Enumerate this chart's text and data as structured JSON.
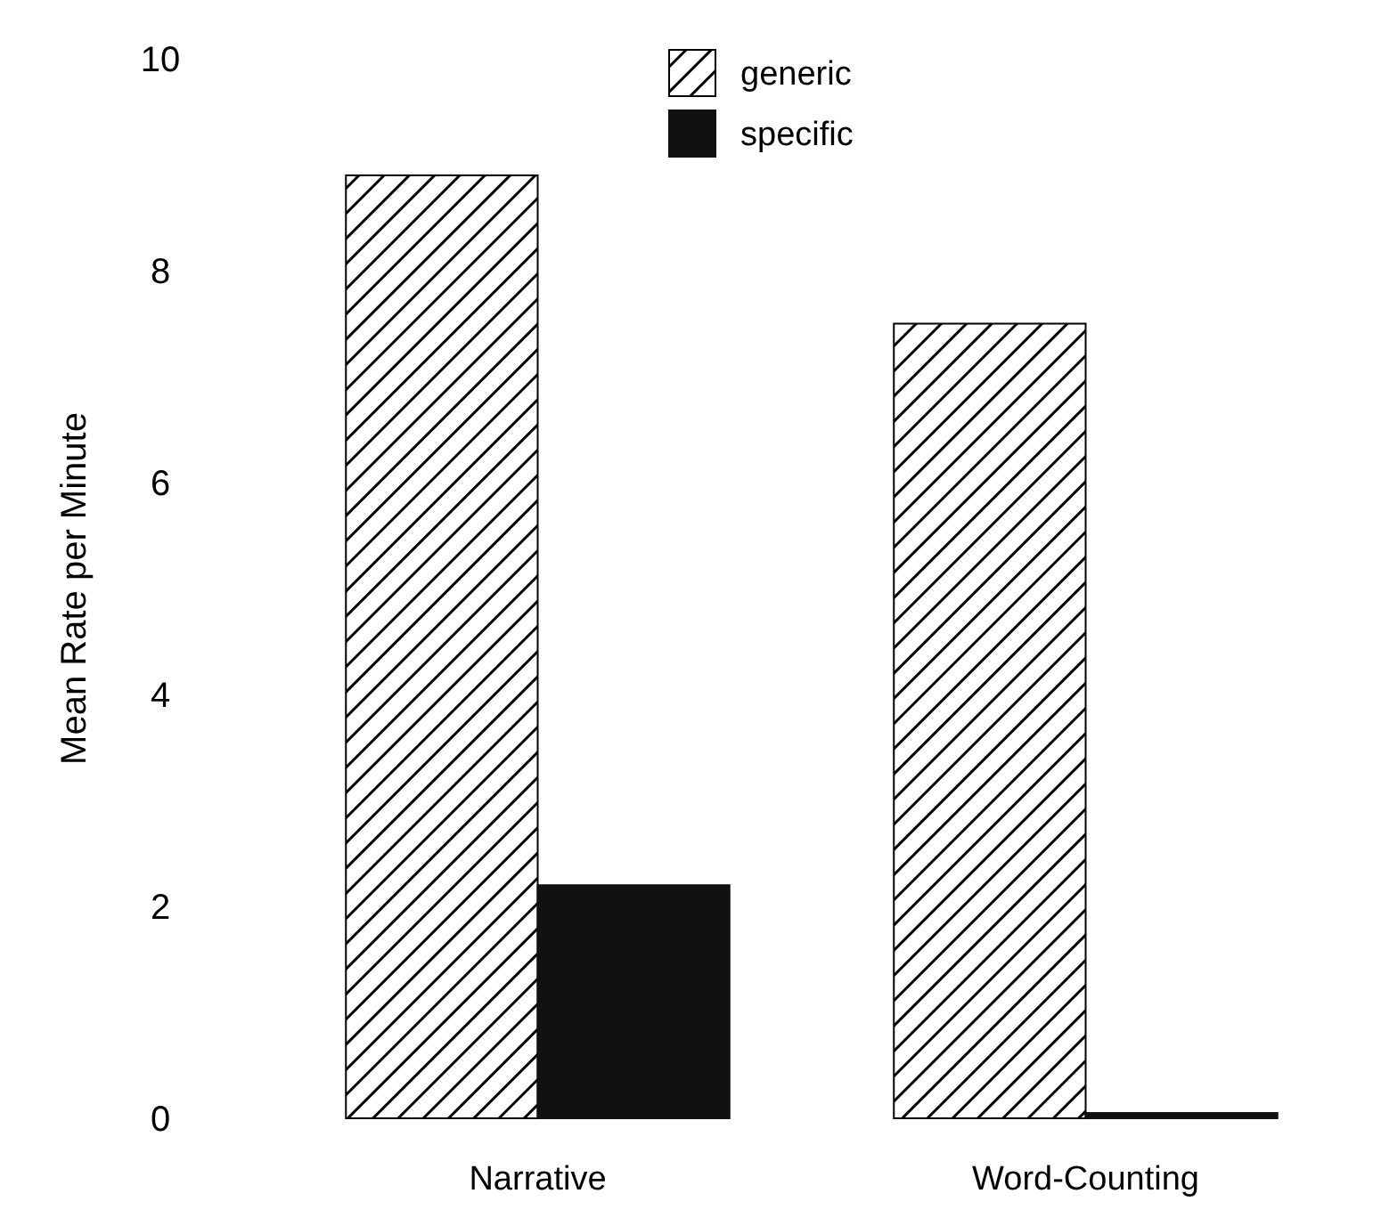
{
  "chart_data": {
    "type": "bar",
    "ylabel": "Mean Rate per Minute",
    "categories": [
      "Narrative",
      "Word-Counting"
    ],
    "series": [
      {
        "name": "generic",
        "color": "#000000",
        "values": [
          8.9,
          7.5
        ]
      },
      {
        "name": "specific",
        "color": "#111111",
        "values": [
          2.2,
          0.05
        ]
      }
    ],
    "ylim": [
      0,
      10
    ],
    "yticks": [
      0,
      2,
      4,
      6,
      8,
      10
    ],
    "legend": "top",
    "grid": false
  }
}
